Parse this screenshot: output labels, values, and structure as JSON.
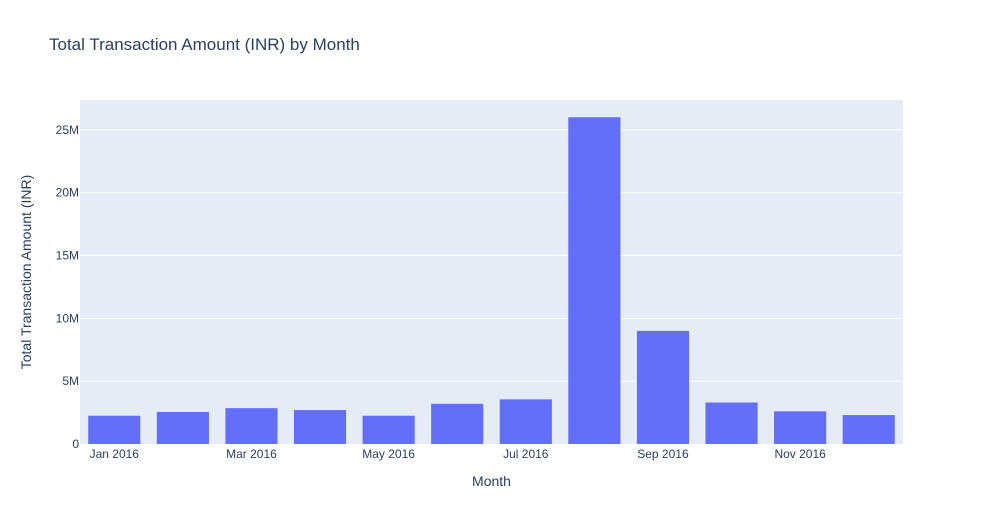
{
  "chart_data": {
    "type": "bar",
    "title": "Total Transaction Amount (INR) by Month",
    "xlabel": "Month",
    "ylabel": "Total Transaction Amount (INR)",
    "categories": [
      "2016-01",
      "2016-02",
      "2016-03",
      "2016-04",
      "2016-05",
      "2016-06",
      "2016-07",
      "2016-08",
      "2016-09",
      "2016-10",
      "2016-11",
      "2016-12"
    ],
    "values": [
      2250000,
      2550000,
      2850000,
      2700000,
      2250000,
      3200000,
      3550000,
      26000000,
      9000000,
      3300000,
      2600000,
      2300000
    ],
    "x_tick_labels": [
      {
        "category": "2016-01",
        "label": "Jan 2016"
      },
      {
        "category": "2016-03",
        "label": "Mar 2016"
      },
      {
        "category": "2016-05",
        "label": "May 2016"
      },
      {
        "category": "2016-07",
        "label": "Jul 2016"
      },
      {
        "category": "2016-09",
        "label": "Sep 2016"
      },
      {
        "category": "2016-11",
        "label": "Nov 2016"
      }
    ],
    "y_ticks": [
      {
        "value": 0,
        "label": "0"
      },
      {
        "value": 5000000,
        "label": "5M"
      },
      {
        "value": 10000000,
        "label": "10M"
      },
      {
        "value": 15000000,
        "label": "15M"
      },
      {
        "value": 20000000,
        "label": "20M"
      },
      {
        "value": 25000000,
        "label": "25M"
      }
    ],
    "ylim": [
      0,
      27370000
    ],
    "grid": true,
    "colors": {
      "bar": "#636efa",
      "plot_bg": "#e5ecf6",
      "grid": "#ffffff",
      "text": "#2a3f5f"
    }
  }
}
